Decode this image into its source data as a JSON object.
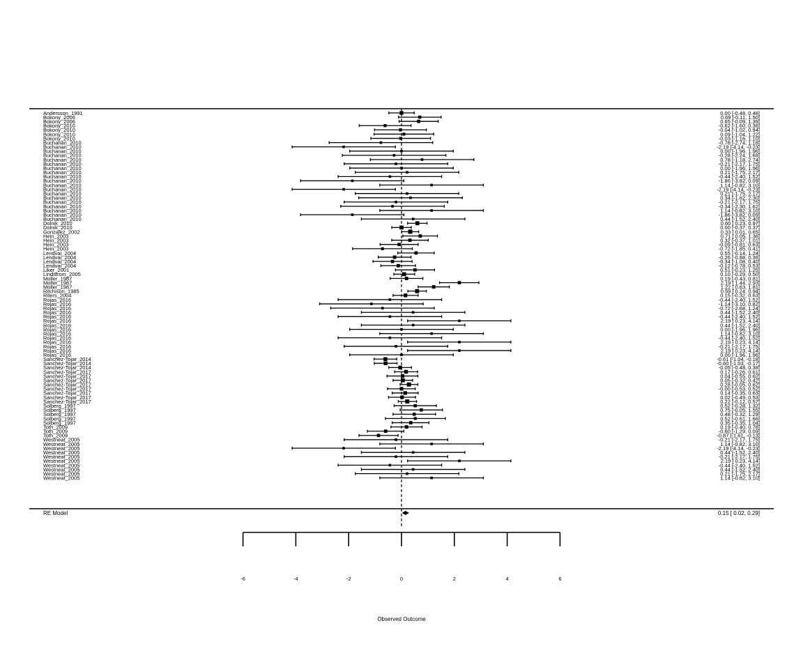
{
  "chart_data": {
    "type": "forest",
    "xlabel": "Observed Outcome",
    "x_ticks": [
      -6,
      -4,
      -2,
      0,
      2,
      4,
      6
    ],
    "xlim": [
      -6,
      6
    ],
    "studies": [
      {
        "label": "Andersson_1991",
        "est": 0.0,
        "lo": -0.48,
        "hi": 0.48,
        "text": "0.00 [-0.48,  0.48]"
      },
      {
        "label": "Bokony_2006",
        "est": 0.69,
        "lo": -0.11,
        "hi": 1.5,
        "text": "0.69 [-0.11,  1.50]"
      },
      {
        "label": "Bokony_2006",
        "est": 0.65,
        "lo": -0.09,
        "hi": 1.39,
        "text": "0.65 [-0.09,  1.39]"
      },
      {
        "label": "Bokony_2010",
        "est": -0.62,
        "lo": -1.6,
        "hi": 0.36,
        "text": "-0.62 [-1.60,  0.36]"
      },
      {
        "label": "Bokony_2010",
        "est": -0.04,
        "lo": -1.02,
        "hi": 0.94,
        "text": "-0.04 [-1.02,  0.94]"
      },
      {
        "label": "Bokony_2010",
        "est": 0.09,
        "lo": -1.04,
        "hi": 1.22,
        "text": "0.09 [-1.04,  1.22]"
      },
      {
        "label": "Bokony_2010",
        "est": -0.03,
        "lo": -1.16,
        "hi": 1.1,
        "text": "-0.03 [-1.16,  1.10]"
      },
      {
        "label": "Buchanan_2010",
        "est": -0.78,
        "lo": -2.74,
        "hi": 1.18,
        "text": "-0.78 [-2.74,  1.18]"
      },
      {
        "label": "Buchanan_2010",
        "est": -2.19,
        "lo": -4.14,
        "hi": -0.23,
        "text": "-2.19 [-4.14, -0.23]"
      },
      {
        "label": "Buchanan_2010",
        "est": 0.0,
        "lo": -1.96,
        "hi": 1.96,
        "text": "0.00 [-1.96,  1.96]"
      },
      {
        "label": "Buchanan_2010",
        "est": -0.28,
        "lo": -2.24,
        "hi": 1.68,
        "text": "-0.28 [-2.24,  1.68]"
      },
      {
        "label": "Buchanan_2010",
        "est": 0.78,
        "lo": -1.18,
        "hi": 2.74,
        "text": "0.78 [-1.18,  2.74]"
      },
      {
        "label": "Buchanan_2010",
        "est": -0.21,
        "lo": -2.17,
        "hi": 1.75,
        "text": "-0.21 [-2.17,  1.75]"
      },
      {
        "label": "Buchanan_2010",
        "est": 0.0,
        "lo": -1.96,
        "hi": 1.96,
        "text": "0.00 [-1.96,  1.96]"
      },
      {
        "label": "Buchanan_2010",
        "est": 0.21,
        "lo": -1.75,
        "hi": 2.17,
        "text": "0.21 [-1.75,  2.17]"
      },
      {
        "label": "Buchanan_2010",
        "est": -0.44,
        "lo": -2.4,
        "hi": 1.52,
        "text": "-0.44 [-2.40,  1.52]"
      },
      {
        "label": "Buchanan_2010",
        "est": -1.86,
        "lo": -3.82,
        "hi": 0.09,
        "text": "-1.86 [-3.82,  0.09]"
      },
      {
        "label": "Buchanan_2010",
        "est": 1.14,
        "lo": -0.82,
        "hi": 3.1,
        "text": "1.14 [-0.82,  3.10]"
      },
      {
        "label": "Buchanan_2010",
        "est": -2.19,
        "lo": -4.14,
        "hi": -0.23,
        "text": "-2.19 [-4.14, -0.23]"
      },
      {
        "label": "Buchanan_2010",
        "est": 0.21,
        "lo": -1.75,
        "hi": 2.17,
        "text": "0.21 [-1.75,  2.17]"
      },
      {
        "label": "Buchanan_2010",
        "est": 0.34,
        "lo": -1.62,
        "hi": 2.3,
        "text": "0.34 [-1.62,  2.30]"
      },
      {
        "label": "Buchanan_2010",
        "est": -0.21,
        "lo": -2.17,
        "hi": 1.75,
        "text": "-0.21 [-2.17,  1.75]"
      },
      {
        "label": "Buchanan_2010",
        "est": -0.34,
        "lo": -2.3,
        "hi": 1.62,
        "text": "-0.34 [-2.30,  1.62]"
      },
      {
        "label": "Buchanan_2010",
        "est": 1.14,
        "lo": -0.82,
        "hi": 3.1,
        "text": "1.14 [-0.82,  3.10]"
      },
      {
        "label": "Buchanan_2010",
        "est": -1.86,
        "lo": -3.82,
        "hi": 0.09,
        "text": "-1.86 [-3.82,  0.09]"
      },
      {
        "label": "Buchanan_2010",
        "est": 0.44,
        "lo": -1.52,
        "hi": 2.4,
        "text": "0.44 [-1.52,  2.40]"
      },
      {
        "label": "Dolnik_2010",
        "est": 0.6,
        "lo": 0.23,
        "hi": 0.97,
        "text": "0.60 [ 0.23,  0.97]"
      },
      {
        "label": "Dolnik_2010",
        "est": 0.0,
        "lo": -0.37,
        "hi": 0.37,
        "text": "0.00 [-0.37,  0.37]"
      },
      {
        "label": "Gonzalez_2002",
        "est": 0.33,
        "lo": 0.01,
        "hi": 0.65,
        "text": "0.33 [ 0.01,  0.65]"
      },
      {
        "label": "Hein_2003",
        "est": 0.71,
        "lo": 0.05,
        "hi": 1.36,
        "text": "0.71 [ 0.05,  1.36]"
      },
      {
        "label": "Hein_2003",
        "est": 0.32,
        "lo": -0.37,
        "hi": 1.01,
        "text": "0.32 [-0.37,  1.01]"
      },
      {
        "label": "Hein_2003",
        "est": -0.09,
        "lo": -0.81,
        "hi": 0.63,
        "text": "-0.09 [-0.81,  0.63]"
      },
      {
        "label": "Hein_2003",
        "est": -0.72,
        "lo": -1.85,
        "hi": 0.41,
        "text": "-0.72 [-1.85,  0.41]"
      },
      {
        "label": "Lendvai_2004",
        "est": 0.55,
        "lo": -0.14,
        "hi": 1.24,
        "text": "0.55 [-0.14,  1.24]"
      },
      {
        "label": "Lendvai_2004",
        "est": -0.26,
        "lo": -0.88,
        "hi": 0.36,
        "text": "-0.26 [-0.88,  0.36]"
      },
      {
        "label": "Lendvai_2004",
        "est": -0.34,
        "lo": -1.08,
        "hi": 0.4,
        "text": "-0.34 [-1.08,  0.40]"
      },
      {
        "label": "Lendvai_2004",
        "est": -0.12,
        "lo": -0.78,
        "hi": 0.53,
        "text": "-0.12 [-0.78,  0.53]"
      },
      {
        "label": "Liker_2001",
        "est": 0.51,
        "lo": -0.23,
        "hi": 1.25,
        "text": "0.51 [-0.23,  1.25]"
      },
      {
        "label": "Lindstrom_2005",
        "est": 0.1,
        "lo": -0.29,
        "hi": 0.5,
        "text": "0.10 [-0.29,  0.50]"
      },
      {
        "label": "Moller_1987",
        "est": 0.19,
        "lo": -0.43,
        "hi": 0.81,
        "text": "0.19 [-0.43,  0.81]"
      },
      {
        "label": "Moller_1987",
        "est": 2.19,
        "lo": 1.44,
        "hi": 2.93,
        "text": "2.19 [ 1.44,  2.93]"
      },
      {
        "label": "Moller_1987",
        "est": 1.22,
        "lo": 0.63,
        "hi": 1.81,
        "text": "1.22 [ 0.63,  1.81]"
      },
      {
        "label": "Ritchison_1985",
        "est": 0.59,
        "lo": 0.24,
        "hi": 0.94,
        "text": "0.59 [ 0.24,  0.94]"
      },
      {
        "label": "Riters_2004",
        "est": 0.15,
        "lo": -0.32,
        "hi": 0.63,
        "text": "0.15 [-0.32,  0.63]"
      },
      {
        "label": "Rojas_2016",
        "est": -0.44,
        "lo": -2.4,
        "hi": 1.52,
        "text": "-0.44 [-2.40,  1.52]"
      },
      {
        "label": "Rojas_2016",
        "est": -1.14,
        "lo": -3.1,
        "hi": 0.82,
        "text": "-1.14 [-3.10,  0.82]"
      },
      {
        "label": "Rojas_2016",
        "est": -0.72,
        "lo": -2.68,
        "hi": 1.24,
        "text": "-0.72 [-2.68,  1.24]"
      },
      {
        "label": "Rojas_2016",
        "est": 0.44,
        "lo": -1.52,
        "hi": 2.4,
        "text": "0.44 [-1.52,  2.40]"
      },
      {
        "label": "Rojas_2016",
        "est": -0.44,
        "lo": -2.4,
        "hi": 1.52,
        "text": "-0.44 [-2.40,  1.52]"
      },
      {
        "label": "Rojas_2016",
        "est": 2.19,
        "lo": 0.23,
        "hi": 4.14,
        "text": "2.19 [ 0.23,  4.14]"
      },
      {
        "label": "Rojas_2016",
        "est": 0.44,
        "lo": -1.52,
        "hi": 2.4,
        "text": "0.44 [-1.52,  2.40]"
      },
      {
        "label": "Rojas_2016",
        "est": 0.0,
        "lo": -1.96,
        "hi": 1.96,
        "text": "0.00 [-1.96,  1.96]"
      },
      {
        "label": "Rojas_2016",
        "est": 1.14,
        "lo": -0.82,
        "hi": 3.1,
        "text": "1.14 [-0.82,  3.10]"
      },
      {
        "label": "Rojas_2016",
        "est": -0.44,
        "lo": -2.4,
        "hi": 1.52,
        "text": "-0.44 [-2.40,  1.52]"
      },
      {
        "label": "Rojas_2016",
        "est": 2.19,
        "lo": 0.23,
        "hi": 4.14,
        "text": "2.19 [ 0.23,  4.14]"
      },
      {
        "label": "Rojas_2016",
        "est": -0.21,
        "lo": -2.17,
        "hi": 1.75,
        "text": "-0.21 [-2.17,  1.75]"
      },
      {
        "label": "Rojas_2016",
        "est": 2.19,
        "lo": 0.23,
        "hi": 4.14,
        "text": "2.19 [ 0.23,  4.14]"
      },
      {
        "label": "Rojas_2016",
        "est": 0.0,
        "lo": -1.96,
        "hi": 1.96,
        "text": "0.00 [-1.96,  1.96]"
      },
      {
        "label": "Sanchez-Tojar_2014",
        "est": -0.61,
        "lo": -1.04,
        "hi": -0.18,
        "text": "-0.61 [-1.04, -0.18]"
      },
      {
        "label": "Sanchez-Tojar_2014",
        "est": -0.6,
        "lo": -1.03,
        "hi": -0.17,
        "text": "-0.60 [-1.03, -0.17]"
      },
      {
        "label": "Sanchez-Tojar_2014",
        "est": -0.05,
        "lo": -0.48,
        "hi": 0.38,
        "text": "-0.05 [-0.48,  0.38]"
      },
      {
        "label": "Sanchez-Tojar_2017",
        "est": 0.17,
        "lo": -0.26,
        "hi": 0.61,
        "text": "0.17 [-0.26,  0.61]"
      },
      {
        "label": "Sanchez-Tojar_2017",
        "est": 0.04,
        "lo": -0.55,
        "hi": 0.62,
        "text": "0.04 [-0.55,  0.62]"
      },
      {
        "label": "Sanchez-Tojar_2017",
        "est": 0.05,
        "lo": -0.32,
        "hi": 0.42,
        "text": "0.05 [-0.32,  0.42]"
      },
      {
        "label": "Sanchez-Tojar_2017",
        "est": 0.28,
        "lo": -0.05,
        "hi": 0.62,
        "text": "0.28 [-0.05,  0.62]"
      },
      {
        "label": "Sanchez-Tojar_2017",
        "est": -0.0,
        "lo": -0.53,
        "hi": 0.52,
        "text": "-0.00 [-0.53,  0.52]"
      },
      {
        "label": "Sanchez-Tojar_2017",
        "est": 0.14,
        "lo": -0.35,
        "hi": 0.63,
        "text": "0.14 [-0.35,  0.63]"
      },
      {
        "label": "Sanchez-Tojar_2017",
        "est": 0.02,
        "lo": -0.49,
        "hi": 0.53,
        "text": "0.02 [-0.49,  0.53]"
      },
      {
        "label": "Sanchez-Tojar_2017",
        "est": 0.22,
        "lo": -0.12,
        "hi": 0.57,
        "text": "0.22 [-0.12,  0.57]"
      },
      {
        "label": "Solberg_1997",
        "est": 0.52,
        "lo": -0.28,
        "hi": 1.32,
        "text": "0.52 [-0.28,  1.32]"
      },
      {
        "label": "Solberg_1997",
        "est": 0.75,
        "lo": -0.05,
        "hi": 1.55,
        "text": "0.75 [-0.05,  1.55]"
      },
      {
        "label": "Solberg_1997",
        "est": 0.48,
        "lo": -0.32,
        "hi": 1.29,
        "text": "0.48 [-0.32,  1.29]"
      },
      {
        "label": "Solberg_1997",
        "est": 0.52,
        "lo": -0.61,
        "hi": 1.66,
        "text": "0.52 [-0.61,  1.66]"
      },
      {
        "label": "Solberg_1997",
        "est": 0.35,
        "lo": -0.35,
        "hi": 1.04,
        "text": "0.35 [-0.35,  1.04]"
      },
      {
        "label": "Toth_2009",
        "est": 0.19,
        "lo": -0.4,
        "hi": 0.78,
        "text": "0.19 [-0.40,  0.78]"
      },
      {
        "label": "Toth_2009",
        "est": -0.6,
        "lo": -1.29,
        "hi": 0.09,
        "text": "-0.60 [-1.29,  0.09]"
      },
      {
        "label": "Toth_2009",
        "est": -0.87,
        "lo": -1.61,
        "hi": -0.13,
        "text": "-0.87 [-1.61, -0.13]"
      },
      {
        "label": "Westneat_2005",
        "est": -0.21,
        "lo": -2.17,
        "hi": 1.75,
        "text": "-0.21 [-2.17,  1.75]"
      },
      {
        "label": "Westneat_2005",
        "est": 1.14,
        "lo": -0.82,
        "hi": 3.1,
        "text": "1.14 [-0.82,  3.10]"
      },
      {
        "label": "Westneat_2005",
        "est": -2.19,
        "lo": -4.14,
        "hi": -0.23,
        "text": "-2.19 [-4.14, -0.23]"
      },
      {
        "label": "Westneat_2005",
        "est": 0.44,
        "lo": -1.52,
        "hi": 2.4,
        "text": "0.44 [-1.52,  2.40]"
      },
      {
        "label": "Westneat_2005",
        "est": -0.21,
        "lo": -2.17,
        "hi": 1.75,
        "text": "-0.21 [-2.17,  1.75]"
      },
      {
        "label": "Westneat_2005",
        "est": 2.19,
        "lo": 0.23,
        "hi": 4.14,
        "text": "2.19 [ 0.23,  4.14]"
      },
      {
        "label": "Westneat_2005",
        "est": -0.44,
        "lo": -2.4,
        "hi": 1.52,
        "text": "-0.44 [-2.40,  1.52]"
      },
      {
        "label": "Westneat_2005",
        "est": 0.44,
        "lo": -1.52,
        "hi": 2.4,
        "text": "0.44 [-1.52,  2.40]"
      },
      {
        "label": "Westneat_2005",
        "est": 0.21,
        "lo": -1.75,
        "hi": 2.17,
        "text": "0.21 [-1.75,  2.17]"
      },
      {
        "label": "Westneat_2005",
        "est": 1.14,
        "lo": -0.82,
        "hi": 3.1,
        "text": "1.14 [-0.82,  3.10]"
      }
    ],
    "summary": {
      "label": "RE Model",
      "est": 0.15,
      "lo": 0.02,
      "hi": 0.29,
      "text": "0.15 [ 0.02,  0.29]"
    }
  }
}
